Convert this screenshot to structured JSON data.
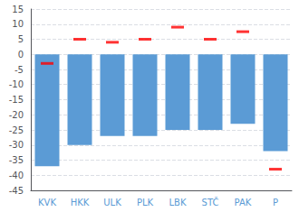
{
  "chart_data": {
    "type": "bar",
    "categories": [
      "KVK",
      "HKK",
      "ULK",
      "PLK",
      "LBK",
      "STČ",
      "PAK",
      "P"
    ],
    "series": [
      {
        "type": "bar",
        "color": "#5B9BD5",
        "values": [
          -37,
          -30,
          -27,
          -27,
          -25,
          -25,
          -23,
          -32
        ]
      },
      {
        "type": "scatter",
        "marker": "dash",
        "color": "#FF0000",
        "values": [
          -3,
          5,
          4,
          5,
          9,
          5,
          7.5,
          -38
        ]
      }
    ],
    "ylim": [
      -45,
      15
    ],
    "yticks": [
      -45,
      -40,
      -35,
      -30,
      -25,
      -20,
      -15,
      -10,
      -5,
      0,
      5,
      10,
      15
    ],
    "grid": true
  }
}
